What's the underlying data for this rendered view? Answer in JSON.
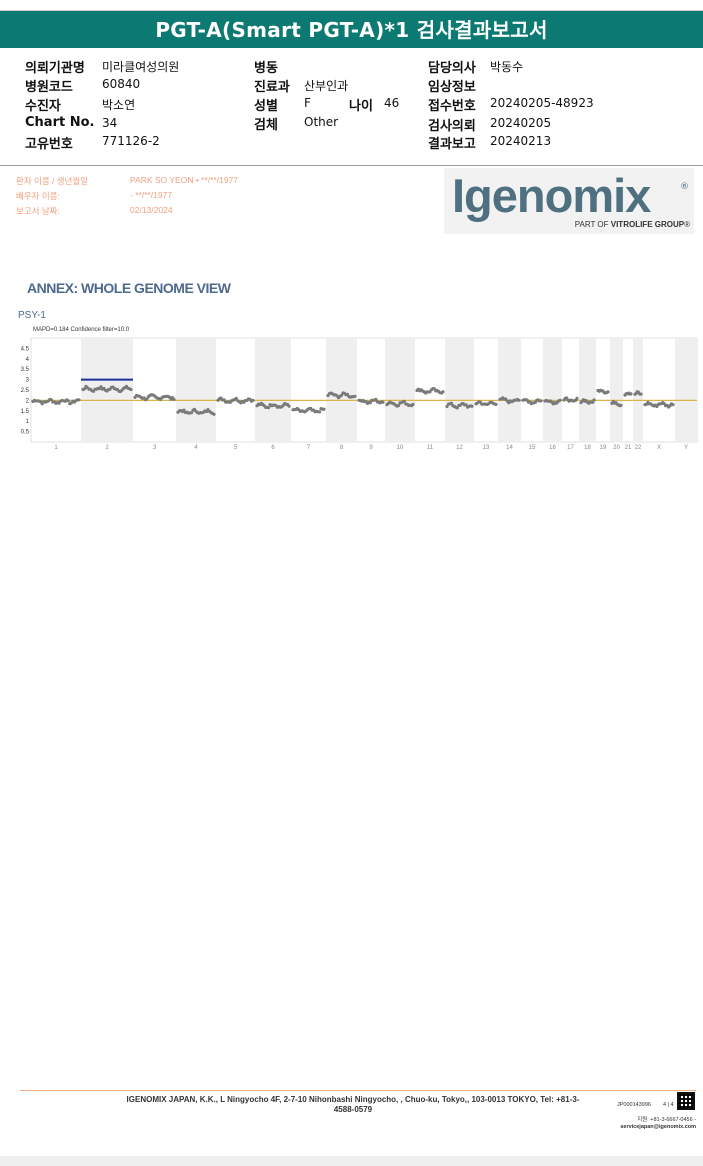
{
  "header": {
    "title": "PGT-A(Smart PGT-A)*1 검사결과보고서"
  },
  "info": {
    "col1": [
      {
        "label": "의뢰기관명",
        "value": "미라클여성의원"
      },
      {
        "label": "병원코드",
        "value": "60840"
      },
      {
        "label": "수진자",
        "value": "박소연"
      },
      {
        "label": "Chart No.",
        "value": "34"
      },
      {
        "label": "고유번호",
        "value": "771126-2"
      }
    ],
    "col2": [
      {
        "label": "병동",
        "value": ""
      },
      {
        "label": "진료과",
        "value": "산부인과"
      },
      {
        "label": "성별",
        "value": "F"
      },
      {
        "label": "검체",
        "value": "Other"
      }
    ],
    "age": {
      "label": "나이",
      "value": "46"
    },
    "col3": [
      {
        "label": "담당의사",
        "value": "박동수"
      },
      {
        "label": "임상정보",
        "value": ""
      },
      {
        "label": "접수번호",
        "value": "20240205-48923"
      },
      {
        "label": "검사의뢰",
        "value": "20240205"
      },
      {
        "label": "결과보고",
        "value": "20240213"
      }
    ]
  },
  "patient": {
    "name_label": "환자 이름 / 생년월일",
    "name_value": "PARK SO YEON • **/**/1977",
    "partner_label": "배우자 이름:",
    "partner_value": "- **/**/1977",
    "report_label": "보고서 날짜:",
    "report_value": "02/13/2024"
  },
  "logo": {
    "word": "Igenomix",
    "reg": "®",
    "sub_prefix": "PART OF ",
    "sub_bold": "VITROLIFE GROUP",
    "sub_suffix": "®"
  },
  "annex": {
    "title": "ANNEX: WHOLE GENOME VIEW",
    "sample": "PSY-1"
  },
  "chart_data": {
    "type": "scatter",
    "subtitle": "MAPD=0.184 Confidence filter=10.0",
    "ylim": [
      0,
      5
    ],
    "yticks": [
      "0.5",
      "1",
      "1.5",
      "2",
      "2.5",
      "3",
      "3.5",
      "4",
      "4.5"
    ],
    "baseline": 2,
    "colors": {
      "points": "#7a7a7a",
      "baseline": "#d9b54a",
      "gain": "#1a2f9a",
      "band": "#efefef"
    },
    "chromosomes": [
      {
        "name": "1",
        "mean": 1.95
      },
      {
        "name": "2",
        "mean": 2.55,
        "gain": 3.0
      },
      {
        "name": "3",
        "mean": 2.15
      },
      {
        "name": "4",
        "mean": 1.45
      },
      {
        "name": "5",
        "mean": 2.0
      },
      {
        "name": "6",
        "mean": 1.75
      },
      {
        "name": "7",
        "mean": 1.5
      },
      {
        "name": "8",
        "mean": 2.25
      },
      {
        "name": "9",
        "mean": 1.95
      },
      {
        "name": "10",
        "mean": 1.85
      },
      {
        "name": "11",
        "mean": 2.45
      },
      {
        "name": "12",
        "mean": 1.75
      },
      {
        "name": "13",
        "mean": 1.85
      },
      {
        "name": "14",
        "mean": 2.0
      },
      {
        "name": "15",
        "mean": 1.95
      },
      {
        "name": "16",
        "mean": 1.95
      },
      {
        "name": "17",
        "mean": 2.0
      },
      {
        "name": "18",
        "mean": 1.95
      },
      {
        "name": "19",
        "mean": 2.45
      },
      {
        "name": "20",
        "mean": 1.85
      },
      {
        "name": "21",
        "mean": 2.3
      },
      {
        "name": "22",
        "mean": 2.3
      },
      {
        "name": "X",
        "mean": 1.8
      },
      {
        "name": "Y",
        "mean": 1.75
      }
    ]
  },
  "footer": {
    "address": "IGENOMIX JAPAN, K.K., L Ningyocho 4F, 2-7-10 Nihonbashi Ningyocho, , Chuo-ku, Tokyo,, 103-0013 TOKYO, Tel: +81-3-4588-0579",
    "code": "JP000143996",
    "page": "4 | 4",
    "phone": "지원: +81-3-6667-0456 -",
    "email": "servicejapan@igenomix.com"
  }
}
